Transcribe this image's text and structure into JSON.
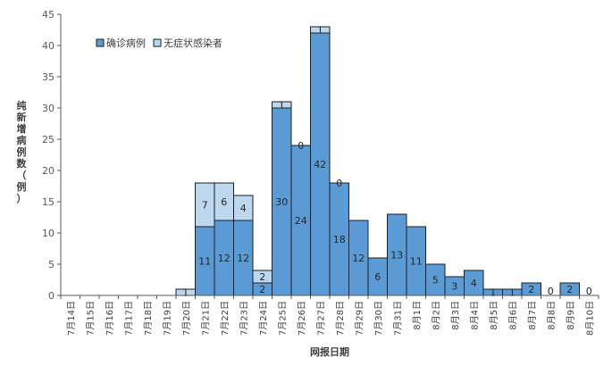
{
  "chart_data": {
    "type": "bar",
    "stacked": true,
    "categories": [
      "7月14日",
      "7月15日",
      "7月16日",
      "7月17日",
      "7月18日",
      "7月19日",
      "7月20日",
      "7月21日",
      "7月22日",
      "7月23日",
      "7月24日",
      "7月25日",
      "7月26日",
      "7月27日",
      "7月28日",
      "7月29日",
      "7月30日",
      "7月31日",
      "8月1日",
      "8月2日",
      "8月3日",
      "8月4日",
      "8月5日",
      "8月6日",
      "8月7日",
      "8月8日",
      "8月9日",
      "8月10日"
    ],
    "series": [
      {
        "name": "确诊病例",
        "color": "#5b9bd5",
        "values": [
          0,
          0,
          0,
          0,
          0,
          0,
          0,
          11,
          12,
          12,
          2,
          30,
          24,
          42,
          18,
          12,
          6,
          13,
          11,
          5,
          3,
          4,
          1,
          1,
          2,
          0,
          2,
          0
        ]
      },
      {
        "name": "无症状感染者",
        "color": "#bdd7ee",
        "values": [
          0,
          0,
          0,
          0,
          0,
          0,
          1,
          7,
          6,
          4,
          2,
          1,
          0,
          1,
          0,
          0,
          0,
          0,
          0,
          0,
          0,
          0,
          0,
          0,
          0,
          0,
          0,
          0
        ]
      }
    ],
    "data_labels": {
      "confirmed": [
        "",
        "",
        "",
        "",
        "",
        "",
        "",
        "11",
        "12",
        "12",
        "2",
        "30",
        "24",
        "42",
        "18",
        "12",
        "6",
        "13",
        "11",
        "5",
        "3",
        "4",
        "1",
        "1",
        "2",
        "0",
        "2",
        "0"
      ],
      "asymptomatic": [
        "",
        "",
        "",
        "",
        "",
        "",
        "1",
        "7",
        "6",
        "4",
        "2",
        "1",
        "0",
        "1",
        "0",
        "",
        "",
        "",
        "",
        "",
        "",
        "",
        "",
        "",
        "",
        "",
        "",
        ""
      ]
    },
    "xlabel": "网报日期",
    "ylabel": "纯新增病例数（例）",
    "ylim": [
      0,
      45
    ],
    "yticks": [
      0,
      5,
      10,
      15,
      20,
      25,
      30,
      35,
      40,
      45
    ],
    "grid": false,
    "legend_position": "top-left"
  }
}
